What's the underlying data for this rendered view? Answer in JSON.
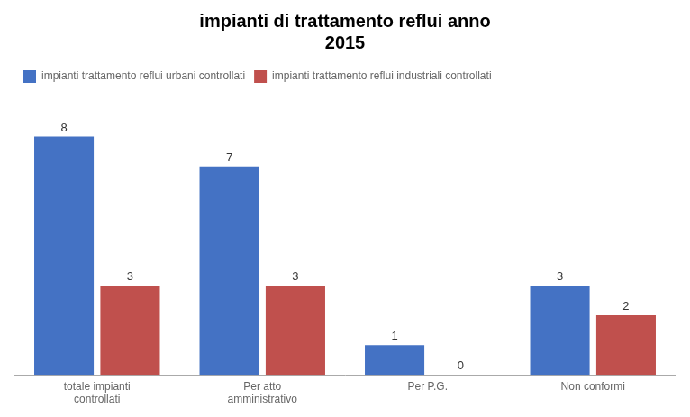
{
  "chart_data": {
    "type": "bar",
    "title": "impianti di trattamento reflui anno\n2015",
    "categories": [
      "totale impianti\ncontrollati",
      "Per atto\namministrativo",
      "Per P.G.",
      "Non conformi"
    ],
    "series": [
      {
        "name": "impianti trattamento reflui urbani controllati",
        "color": "#4472C4",
        "values": [
          8,
          7,
          1,
          3
        ]
      },
      {
        "name": "impianti trattamento reflui industriali controllati",
        "color": "#C0504D",
        "values": [
          3,
          3,
          0,
          2
        ]
      }
    ],
    "ylim": [
      0,
      9.5
    ],
    "grid": false,
    "legend": "top",
    "data_labels": true,
    "tick_labels": "x"
  }
}
